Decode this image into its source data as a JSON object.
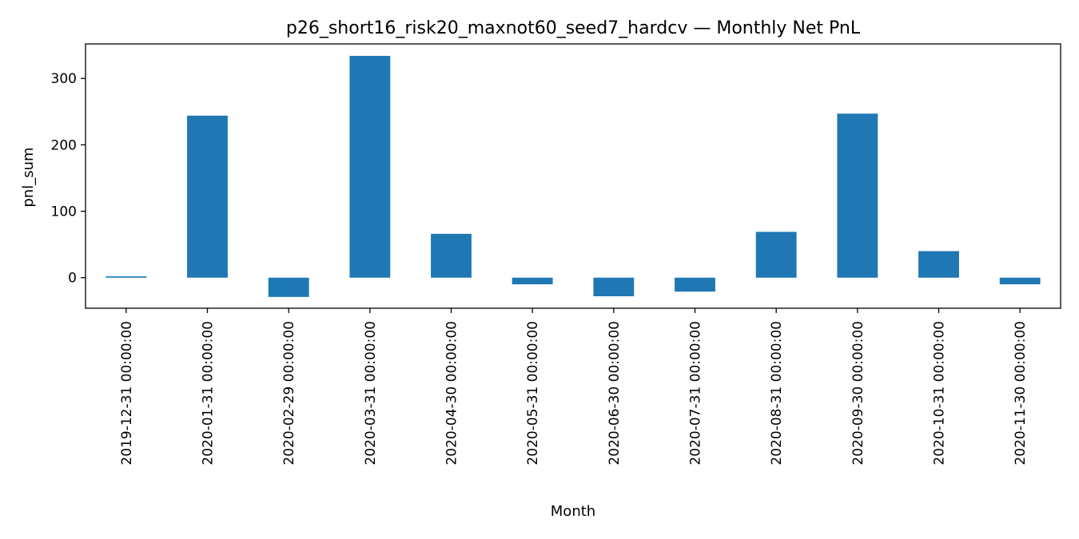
{
  "chart_data": {
    "type": "bar",
    "title": "p26_short16_risk20_maxnot60_seed7_hardcv — Monthly Net PnL",
    "xlabel": "Month",
    "ylabel": "pnl_sum",
    "categories": [
      "2019-12-31 00:00:00",
      "2020-01-31 00:00:00",
      "2020-02-29 00:00:00",
      "2020-03-31 00:00:00",
      "2020-04-30 00:00:00",
      "2020-05-31 00:00:00",
      "2020-06-30 00:00:00",
      "2020-07-31 00:00:00",
      "2020-08-31 00:00:00",
      "2020-09-30 00:00:00",
      "2020-10-31 00:00:00",
      "2020-11-30 00:00:00"
    ],
    "values": [
      2,
      244,
      -29,
      334,
      66,
      -10,
      -28,
      -21,
      69,
      247,
      40,
      -10
    ],
    "ylim": [
      -46,
      352
    ],
    "yticks": [
      0,
      100,
      200,
      300
    ],
    "bar_color": "#1f77b4",
    "grid": false,
    "legend": "none"
  }
}
